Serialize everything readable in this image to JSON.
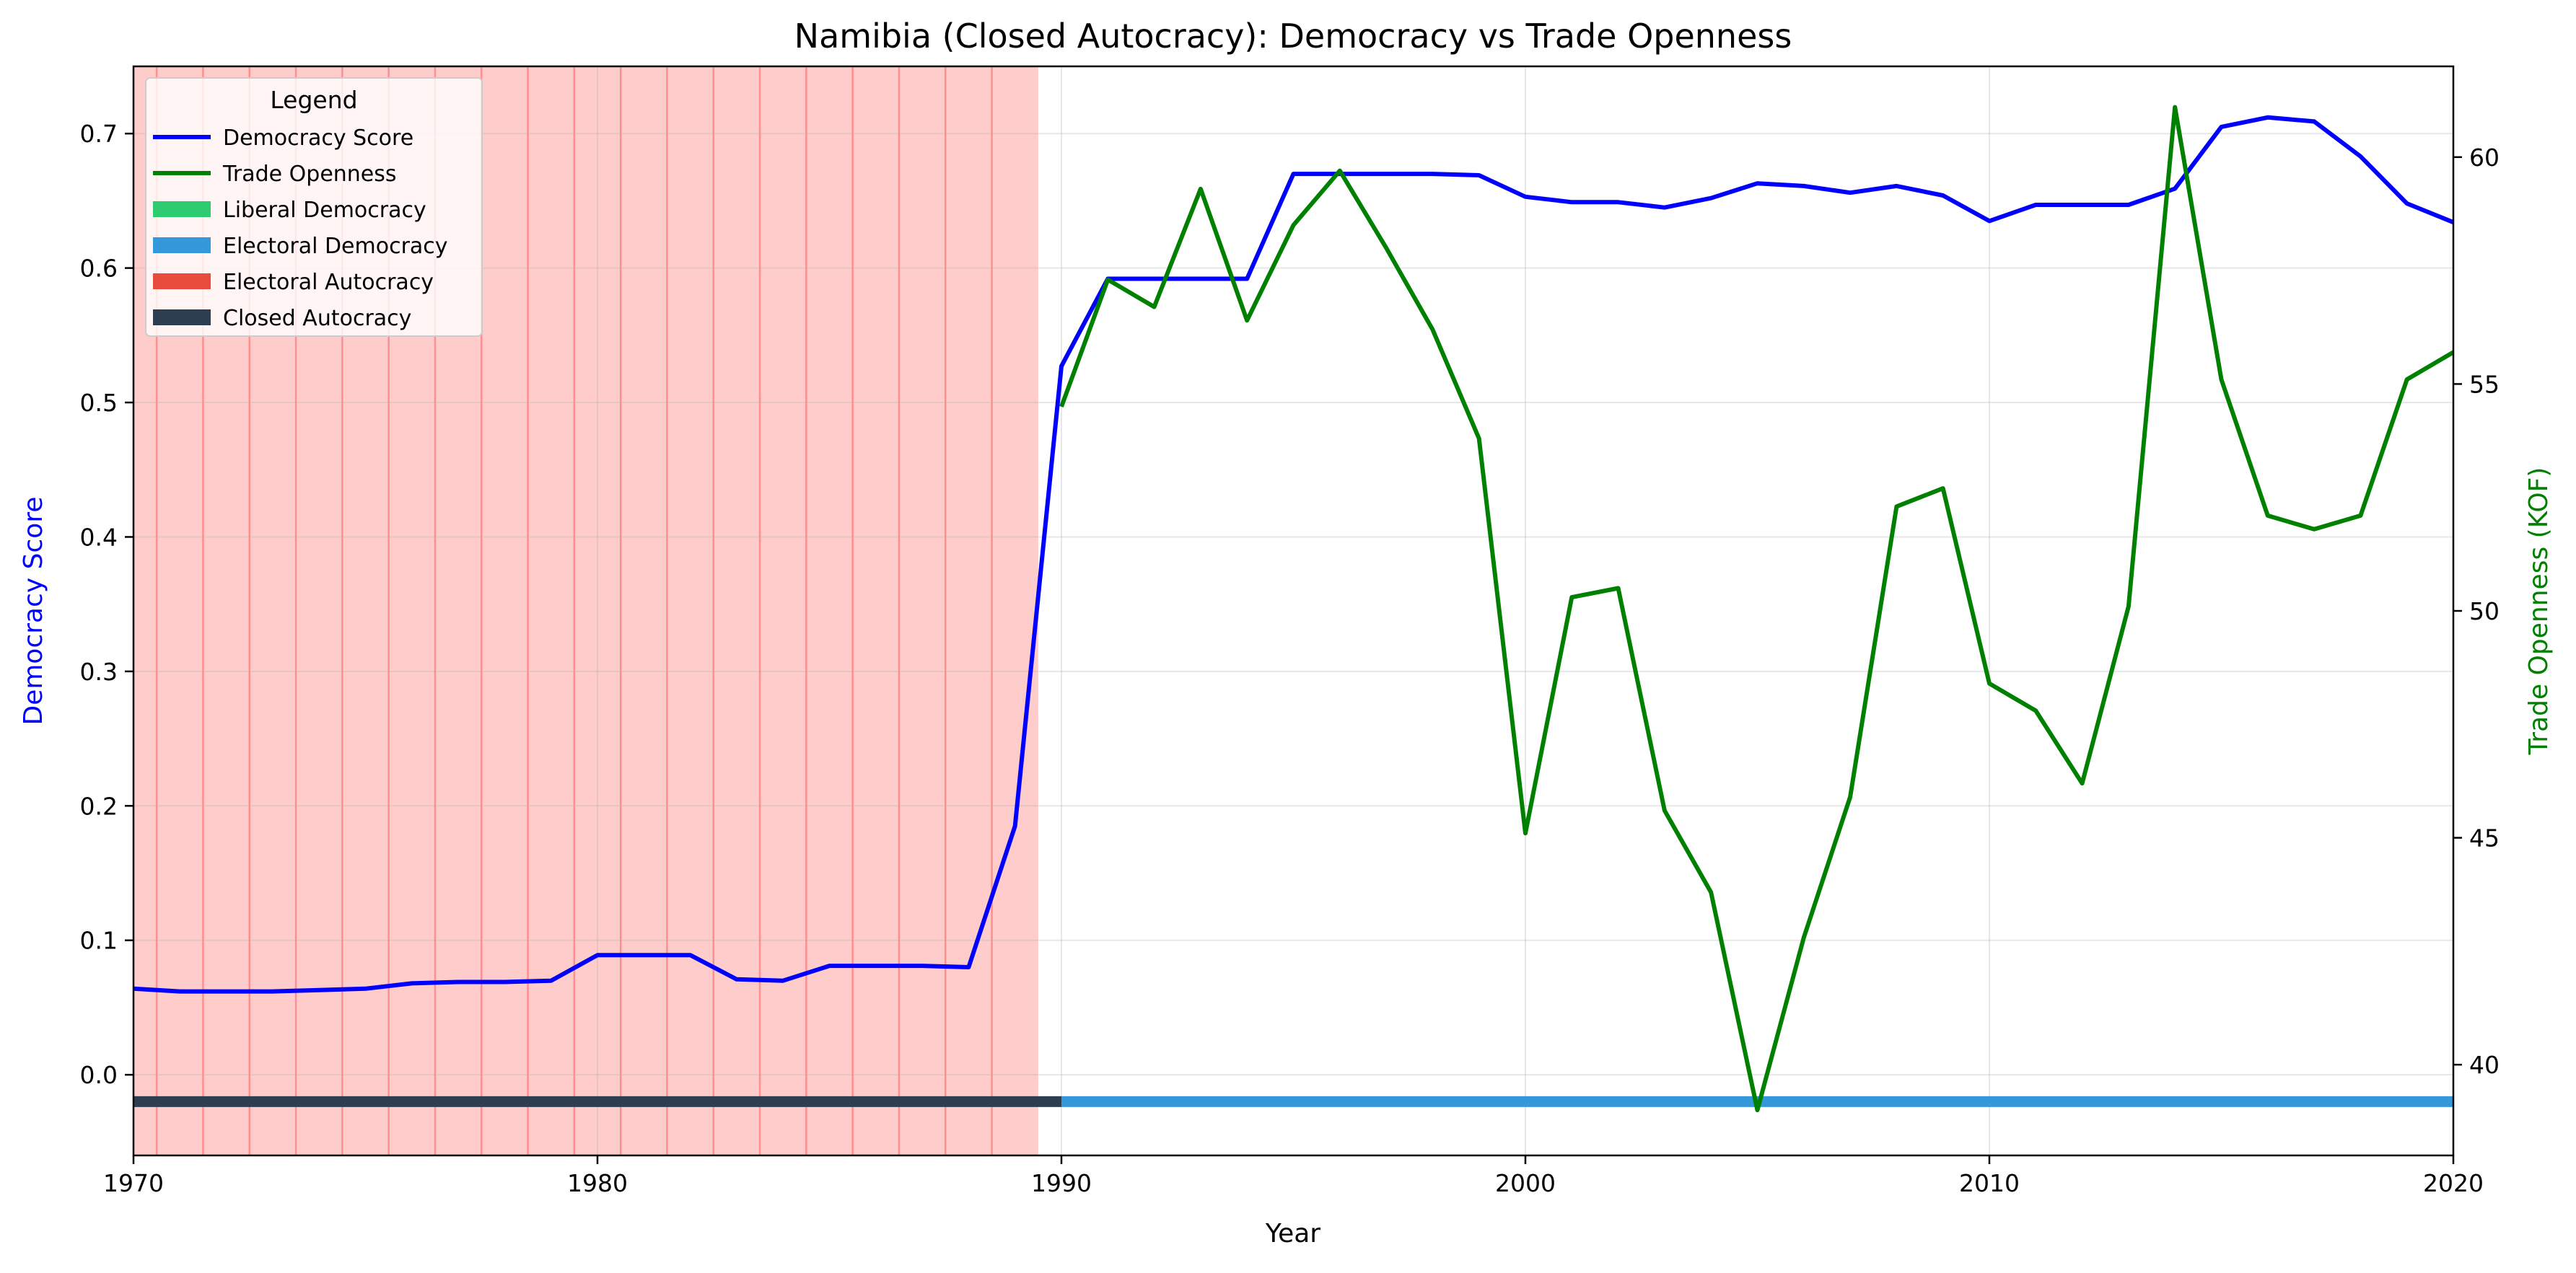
{
  "chart_data": {
    "type": "line",
    "title": "Namibia (Closed Autocracy): Democracy vs Trade Openness",
    "xlabel": "Year",
    "ylabel_left": "Democracy Score",
    "ylabel_right": "Trade Openness (KOF)",
    "xlim": [
      1970,
      2020
    ],
    "ylim_left": [
      -0.06,
      0.75
    ],
    "ylim_right": [
      38,
      62
    ],
    "x_ticks": [
      1970,
      1980,
      1990,
      2000,
      2010,
      2020
    ],
    "y_ticks_left": [
      0.0,
      0.1,
      0.2,
      0.3,
      0.4,
      0.5,
      0.6,
      0.7
    ],
    "y_ticks_left_labels": [
      "0.0",
      "0.1",
      "0.2",
      "0.3",
      "0.4",
      "0.5",
      "0.6",
      "0.7"
    ],
    "y_ticks_right": [
      40,
      45,
      50,
      55,
      60
    ],
    "grid": true,
    "legend": {
      "title": "Legend",
      "placement": "top-left",
      "entries": [
        {
          "label": "Democracy Score",
          "kind": "line",
          "color": "#0000ff"
        },
        {
          "label": "Trade Openness",
          "kind": "line",
          "color": "#008000"
        },
        {
          "label": "Liberal Democracy",
          "kind": "patch",
          "color": "#2ecc71"
        },
        {
          "label": "Electoral Democracy",
          "kind": "patch",
          "color": "#3498db"
        },
        {
          "label": "Electoral Autocracy",
          "kind": "patch",
          "color": "#e74c3c"
        },
        {
          "label": "Closed Autocracy",
          "kind": "patch",
          "color": "#2c3e50"
        }
      ]
    },
    "shaded_region": {
      "x_start": 1970,
      "x_end": 1989.5,
      "color": "#ff0000",
      "opacity": 0.2
    },
    "shaded_region_lines_x": [
      1970.5,
      1971.5,
      1972.5,
      1973.5,
      1974.5,
      1975.5,
      1976.5,
      1977.5,
      1978.5,
      1979.5,
      1980.5,
      1981.5,
      1982.5,
      1983.5,
      1984.5,
      1985.5,
      1986.5,
      1987.5,
      1988.5
    ],
    "regime_band": {
      "y_value": -0.02,
      "segments": [
        {
          "x_start": 1970,
          "x_end": 1990,
          "regime": "Closed Autocracy",
          "color": "#2c3e50"
        },
        {
          "x_start": 1990,
          "x_end": 2020,
          "regime": "Electoral Democracy",
          "color": "#3498db"
        }
      ]
    },
    "series": [
      {
        "name": "Democracy Score",
        "axis": "left",
        "color": "#0000ff",
        "x": [
          1970,
          1971,
          1972,
          1973,
          1974,
          1975,
          1976,
          1977,
          1978,
          1979,
          1980,
          1981,
          1982,
          1983,
          1984,
          1985,
          1986,
          1987,
          1988,
          1989,
          1990,
          1991,
          1992,
          1993,
          1994,
          1995,
          1996,
          1997,
          1998,
          1999,
          2000,
          2001,
          2002,
          2003,
          2004,
          2005,
          2006,
          2007,
          2008,
          2009,
          2010,
          2011,
          2012,
          2013,
          2014,
          2015,
          2016,
          2017,
          2018,
          2019,
          2020
        ],
        "values": [
          0.064,
          0.062,
          0.062,
          0.062,
          0.063,
          0.064,
          0.068,
          0.069,
          0.069,
          0.07,
          0.089,
          0.089,
          0.089,
          0.071,
          0.07,
          0.081,
          0.081,
          0.081,
          0.08,
          0.185,
          0.527,
          0.592,
          0.592,
          0.592,
          0.592,
          0.67,
          0.67,
          0.67,
          0.67,
          0.669,
          0.653,
          0.649,
          0.649,
          0.645,
          0.652,
          0.663,
          0.661,
          0.656,
          0.661,
          0.654,
          0.635,
          0.647,
          0.647,
          0.647,
          0.659,
          0.705,
          0.712,
          0.709,
          0.683,
          0.648,
          0.634
        ]
      },
      {
        "name": "Trade Openness",
        "axis": "right",
        "color": "#008000",
        "x": [
          1990,
          1991,
          1992,
          1993,
          1994,
          1995,
          1996,
          1997,
          1998,
          1999,
          2000,
          2001,
          2002,
          2003,
          2004,
          2005,
          2006,
          2007,
          2008,
          2009,
          2010,
          2011,
          2012,
          2013,
          2014,
          2015,
          2016,
          2017,
          2018,
          2019,
          2020
        ],
        "values": [
          54.5,
          57.3,
          56.7,
          59.3,
          56.4,
          58.5,
          59.7,
          58.0,
          56.2,
          53.8,
          45.1,
          50.3,
          50.5,
          45.6,
          43.8,
          39.0,
          42.8,
          45.9,
          52.3,
          52.7,
          48.4,
          47.8,
          46.2,
          50.1,
          61.1,
          55.1,
          52.1,
          51.8,
          52.1,
          55.1,
          55.7
        ]
      }
    ]
  }
}
